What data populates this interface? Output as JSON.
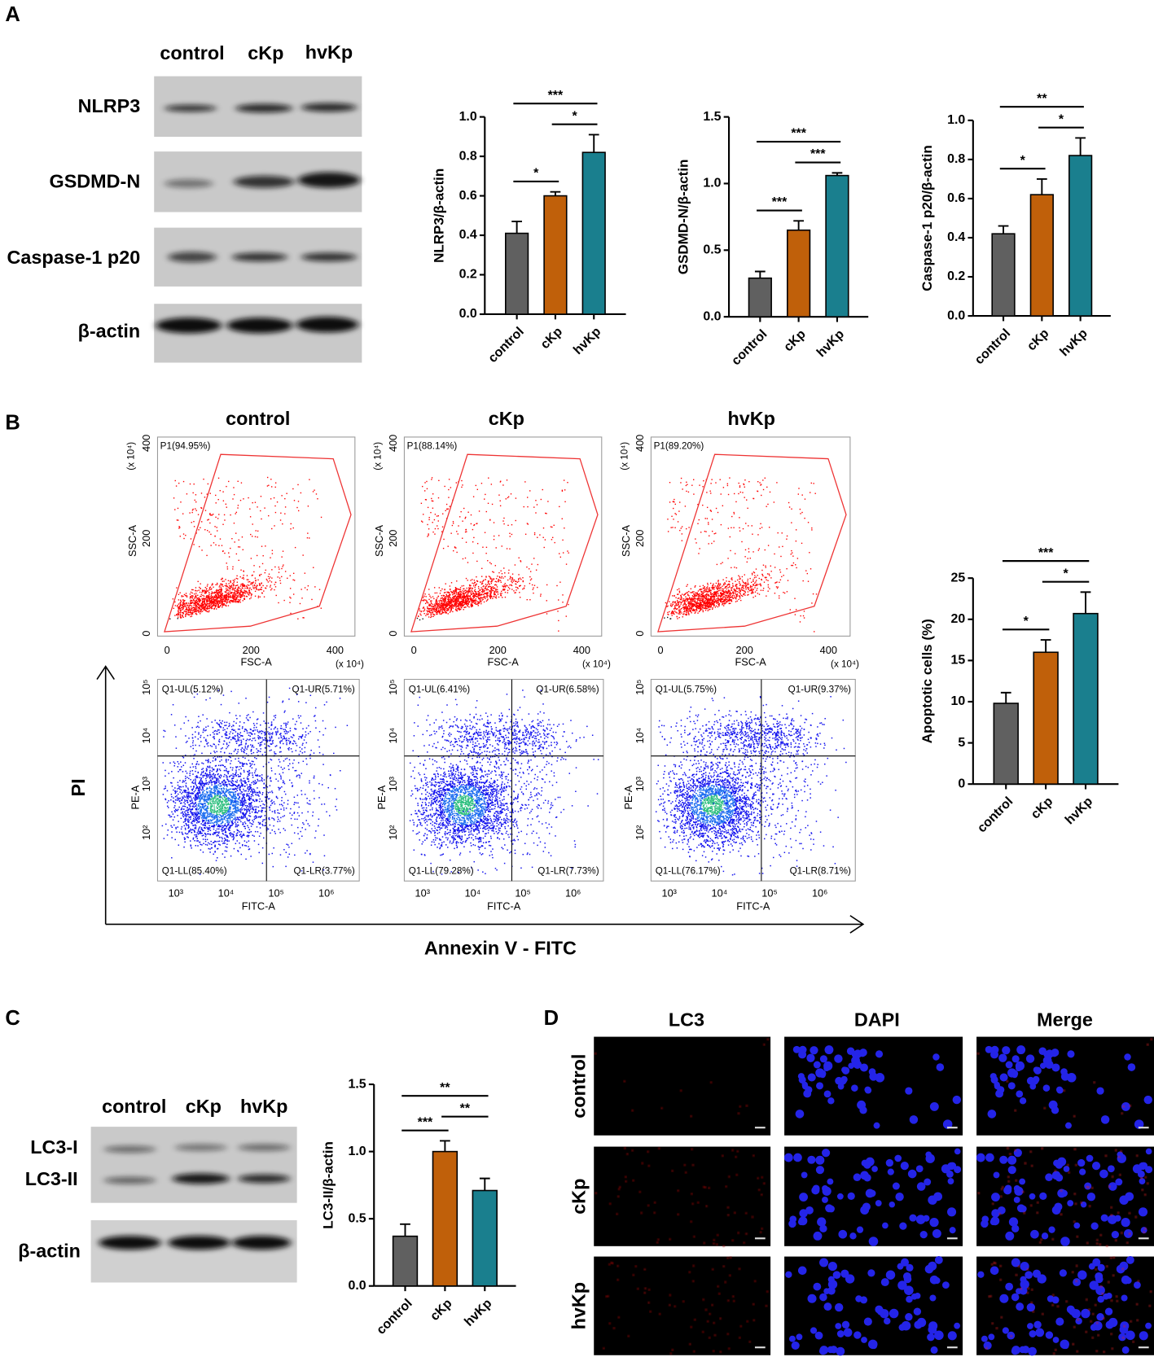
{
  "panel_labels": [
    "A",
    "B",
    "C",
    "D"
  ],
  "panel_a_blots": {
    "lanes": [
      "control",
      "cKp",
      "hvKp"
    ],
    "rows": [
      "NLRP3",
      "GSDMD-N",
      "Caspase-1 p20",
      "β-actin"
    ]
  },
  "panel_b": {
    "groups": [
      "control",
      "cKp",
      "hvKp"
    ],
    "gates": [
      "P1(94.95%)",
      "P1(88.14%)",
      "P1(89.20%)"
    ],
    "scatter_axes": {
      "x_label": "FSC-A",
      "y_label": "SSC-A",
      "ticks": [
        "0",
        "200",
        "400"
      ],
      "scale": "(x 10⁴)"
    },
    "annexin_axes": {
      "x_label": "FITC-A",
      "y_label": "PE-A",
      "xticks": [
        "10³",
        "10⁴",
        "10⁵",
        "10⁶"
      ],
      "yticks": [
        "10²",
        "10³",
        "10⁴",
        "10⁵"
      ]
    },
    "quadrants": [
      [
        "Q1-UL(5.12%)",
        "Q1-UR(5.71%)",
        "Q1-LL(85.40%)",
        "Q1-LR(3.77%)"
      ],
      [
        "Q1-UL(6.41%)",
        "Q1-UR(6.58%)",
        "Q1-LL(79.28%)",
        "Q1-LR(7.73%)"
      ],
      [
        "Q1-UL(5.75%)",
        "Q1-UR(9.37%)",
        "Q1-LL(76.17%)",
        "Q1-LR(8.71%)"
      ]
    ],
    "y_title": "PI",
    "x_title": "Annexin V - FITC"
  },
  "panel_c_blots": {
    "lanes": [
      "control",
      "cKp",
      "hvKp"
    ],
    "rows": [
      "LC3-I",
      "LC3-II",
      "β-actin"
    ]
  },
  "panel_d": {
    "columns": [
      "LC3",
      "DAPI",
      "Merge"
    ],
    "rows": [
      "control",
      "cKp",
      "hvKp"
    ]
  },
  "chart_data": [
    {
      "type": "bar",
      "y_label": "NLRP3/β-actin",
      "categories": [
        "control",
        "cKp",
        "hvKp"
      ],
      "values": [
        0.41,
        0.6,
        0.82
      ],
      "errors": [
        0.06,
        0.02,
        0.09
      ],
      "colors": [
        "#606060",
        "#c0600a",
        "#1a7f8e"
      ],
      "ylim": [
        0,
        1.0
      ],
      "yticks": [
        {
          "value": 0,
          "label": "0.0"
        },
        0.2,
        0.4,
        0.6,
        0.8,
        {
          "value": 1.0,
          "label": "1.0"
        }
      ],
      "significance": [
        {
          "pair": [
            0,
            1
          ],
          "label": "*"
        },
        {
          "pair": [
            1,
            2
          ],
          "label": "*"
        },
        {
          "pair": [
            0,
            2
          ],
          "label": "***"
        }
      ]
    },
    {
      "type": "bar",
      "y_label": "GSDMD-N/β-actin",
      "categories": [
        "control",
        "cKp",
        "hvKp"
      ],
      "values": [
        0.29,
        0.65,
        1.06
      ],
      "errors": [
        0.05,
        0.07,
        0.02
      ],
      "colors": [
        "#606060",
        "#c0600a",
        "#1a7f8e"
      ],
      "ylim": [
        0,
        1.5
      ],
      "yticks": [
        {
          "value": 0,
          "label": "0.0"
        },
        0.5,
        {
          "value": 1.0,
          "label": "1.0"
        },
        1.5
      ],
      "significance": [
        {
          "pair": [
            0,
            1
          ],
          "label": "***"
        },
        {
          "pair": [
            1,
            2
          ],
          "label": "***"
        },
        {
          "pair": [
            0,
            2
          ],
          "label": "***"
        }
      ]
    },
    {
      "type": "bar",
      "y_label": "Caspase-1 p20/β-actin",
      "categories": [
        "control",
        "cKp",
        "hvKp"
      ],
      "values": [
        0.42,
        0.62,
        0.82
      ],
      "errors": [
        0.04,
        0.08,
        0.09
      ],
      "colors": [
        "#606060",
        "#c0600a",
        "#1a7f8e"
      ],
      "ylim": [
        0,
        1.0
      ],
      "yticks": [
        {
          "value": 0,
          "label": "0.0"
        },
        0.2,
        0.4,
        0.6,
        0.8,
        {
          "value": 1.0,
          "label": "1.0"
        }
      ],
      "significance": [
        {
          "pair": [
            0,
            1
          ],
          "label": "*"
        },
        {
          "pair": [
            1,
            2
          ],
          "label": "*"
        },
        {
          "pair": [
            0,
            2
          ],
          "label": "**"
        }
      ]
    },
    {
      "type": "bar",
      "y_label": "Apoptotic cells (%)",
      "categories": [
        "control",
        "cKp",
        "hvKp"
      ],
      "values": [
        9.8,
        16.0,
        20.7
      ],
      "errors": [
        1.3,
        1.5,
        2.6
      ],
      "colors": [
        "#606060",
        "#c0600a",
        "#1a7f8e"
      ],
      "ylim": [
        0,
        25
      ],
      "yticks": [
        0,
        5,
        10,
        15,
        20,
        25
      ],
      "significance": [
        {
          "pair": [
            0,
            1
          ],
          "label": "*"
        },
        {
          "pair": [
            1,
            2
          ],
          "label": "*"
        },
        {
          "pair": [
            0,
            2
          ],
          "label": "***"
        }
      ]
    },
    {
      "type": "bar",
      "y_label": "LC3-II/β-actin",
      "categories": [
        "control",
        "cKp",
        "hvKp"
      ],
      "values": [
        0.37,
        1.0,
        0.71
      ],
      "errors": [
        0.09,
        0.08,
        0.09
      ],
      "colors": [
        "#606060",
        "#c0600a",
        "#1a7f8e"
      ],
      "ylim": [
        0,
        1.5
      ],
      "yticks": [
        {
          "value": 0,
          "label": "0.0"
        },
        0.5,
        {
          "value": 1.0,
          "label": "1.0"
        },
        1.5
      ],
      "significance": [
        {
          "pair": [
            0,
            1
          ],
          "label": "***"
        },
        {
          "pair": [
            1,
            2
          ],
          "label": "**"
        },
        {
          "pair": [
            0,
            2
          ],
          "label": "**"
        }
      ]
    }
  ]
}
